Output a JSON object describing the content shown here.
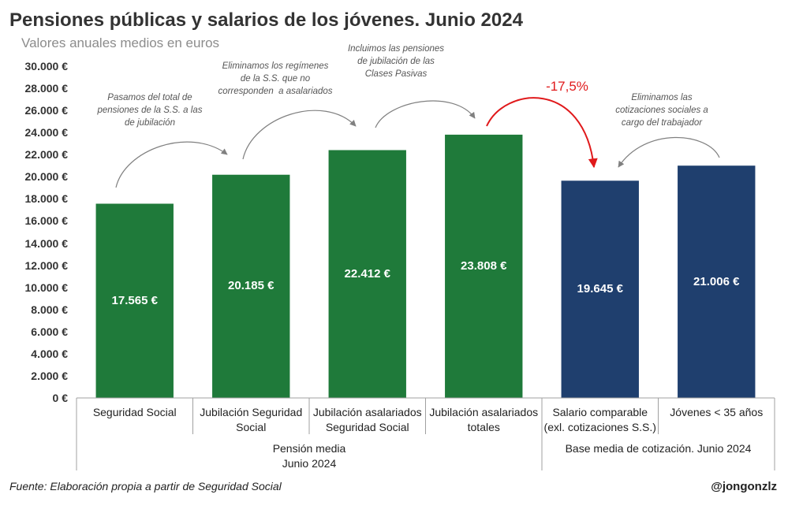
{
  "chart_data": {
    "type": "bar",
    "title": "Pensiones públicas y salarios de los jóvenes. Junio 2024",
    "subtitle": "Valores anuales medios en euros",
    "categories": [
      "Seguridad Social",
      "Jubilación Seguridad\nSocial",
      "Jubilación asalariados\nSeguridad Social",
      "Jubilación asalariados\ntotales",
      "Salario comparable\n(exl. cotizaciones S.S.)",
      "Jóvenes < 35 años"
    ],
    "values": [
      17565,
      20185,
      22412,
      23808,
      19645,
      21006
    ],
    "data_labels": [
      "17.565 €",
      "20.185 €",
      "22.412 €",
      "23.808 €",
      "19.645 €",
      "21.006 €"
    ],
    "ylim": [
      0,
      30000
    ],
    "ytick_step": 2000,
    "y_tick_labels": [
      "0 €",
      "2.000 €",
      "4.000 €",
      "6.000 €",
      "8.000 €",
      "10.000 €",
      "12.000 €",
      "14.000 €",
      "16.000 €",
      "18.000 €",
      "20.000 €",
      "22.000 €",
      "24.000 €",
      "26.000 €",
      "28.000 €",
      "30.000 €"
    ],
    "grid": false,
    "groups": [
      {
        "label": "Pensión media\nJunio 2024",
        "first": 0,
        "last": 3,
        "color": "#1f7a3a"
      },
      {
        "label": "Base media de cotización. Junio 2024",
        "first": 4,
        "last": 5,
        "color": "#1f3f6e"
      }
    ],
    "annotations": [
      {
        "text": "Pasamos del total de\npensiones de la S.S. a las\nde jubilación",
        "from": 0,
        "to": 1
      },
      {
        "text": "Eliminamos los regímenes\nde la S.S. que no\ncorresponden  a asalariados",
        "from": 1,
        "to": 2
      },
      {
        "text": "Incluimos las pensiones\nde jubilación de las\nClases Pasivas",
        "from": 2,
        "to": 3
      },
      {
        "text": "-17,5%",
        "from": 3,
        "to": 4,
        "color": "#e0191b"
      },
      {
        "text": "Eliminamos las\ncotizaciones sociales a\ncargo del trabajador",
        "from": 5,
        "to": 4
      }
    ]
  },
  "footer": {
    "source": "Fuente: Elaboración propia a partir de Seguridad Social",
    "handle": "@jongonzlz"
  }
}
